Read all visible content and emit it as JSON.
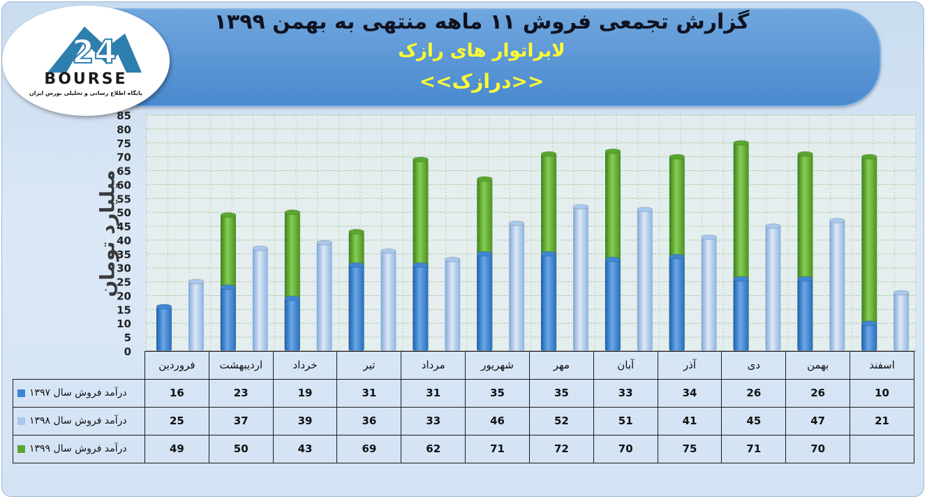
{
  "header": {
    "title": "گزارش تجمعی فروش ۱۱ ماهه منتهی به بهمن ۱۳۹۹",
    "company": "لابراتوار های رازک",
    "symbol": "<<درازک>>"
  },
  "logo": {
    "number": "24",
    "brand": "BOURSE",
    "tagline": "پایگاه اطلاع رسانی و تحلیلی بورس ایران"
  },
  "chart_data": {
    "type": "bar",
    "ylabel": "میلیارد تومان",
    "ylim": [
      0,
      85
    ],
    "yticks": [
      0,
      5,
      10,
      15,
      20,
      25,
      30,
      35,
      40,
      45,
      50,
      55,
      60,
      65,
      70,
      75,
      80,
      85
    ],
    "categories": [
      "فروردین",
      "اردیبهشت",
      "خرداد",
      "تیر",
      "مرداد",
      "شهریور",
      "مهر",
      "آبان",
      "آذر",
      "دی",
      "بهمن",
      "اسفند"
    ],
    "series": [
      {
        "name": "درآمد فروش سال ۱۳۹۷",
        "color": "#3f86d4",
        "values": [
          16,
          23,
          19,
          31,
          31,
          35,
          35,
          33,
          34,
          26,
          26,
          10
        ]
      },
      {
        "name": "درآمد فروش سال ۱۳۹۸",
        "color": "#a9c8ec",
        "values": [
          25,
          37,
          39,
          36,
          33,
          46,
          52,
          51,
          41,
          45,
          47,
          21
        ]
      },
      {
        "name": "درآمد فروش سال ۱۳۹۹",
        "color": "#5aa62f",
        "values": [
          49,
          50,
          43,
          69,
          62,
          71,
          72,
          70,
          75,
          71,
          70,
          null
        ]
      }
    ],
    "grid": true,
    "legend": "table-left"
  }
}
